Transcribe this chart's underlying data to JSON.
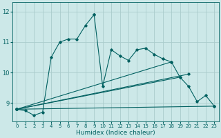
{
  "xlabel": "Humidex (Indice chaleur)",
  "bg_color": "#cce8e8",
  "line_color": "#006060",
  "grid_color": "#aacccc",
  "xlim": [
    -0.5,
    23.5
  ],
  "ylim": [
    8.4,
    12.3
  ],
  "yticks": [
    9,
    10,
    11,
    12
  ],
  "xticks": [
    0,
    1,
    2,
    3,
    4,
    5,
    6,
    7,
    8,
    9,
    10,
    11,
    12,
    13,
    14,
    15,
    16,
    17,
    18,
    19,
    20,
    21,
    22,
    23
  ],
  "curves": [
    {
      "x": [
        0,
        1,
        2,
        3,
        4,
        5,
        6,
        7,
        8,
        9
      ],
      "y": [
        8.8,
        8.75,
        8.6,
        8.7,
        10.5,
        11.0,
        11.1,
        11.1,
        11.55,
        11.9
      ]
    },
    {
      "x": [
        9,
        10,
        11,
        12,
        13,
        14,
        15,
        16,
        17,
        18,
        19,
        20,
        21,
        22,
        23
      ],
      "y": [
        11.9,
        9.55,
        10.75,
        10.55,
        10.4,
        10.75,
        10.8,
        10.6,
        10.45,
        10.35,
        9.85,
        9.55,
        9.05,
        9.25,
        8.9
      ]
    },
    {
      "x": [
        0,
        23
      ],
      "y": [
        8.8,
        8.9
      ]
    },
    {
      "x": [
        0,
        19
      ],
      "y": [
        8.8,
        9.85
      ]
    },
    {
      "x": [
        0,
        20
      ],
      "y": [
        8.8,
        9.95
      ]
    },
    {
      "x": [
        0,
        18
      ],
      "y": [
        8.8,
        10.35
      ]
    }
  ]
}
